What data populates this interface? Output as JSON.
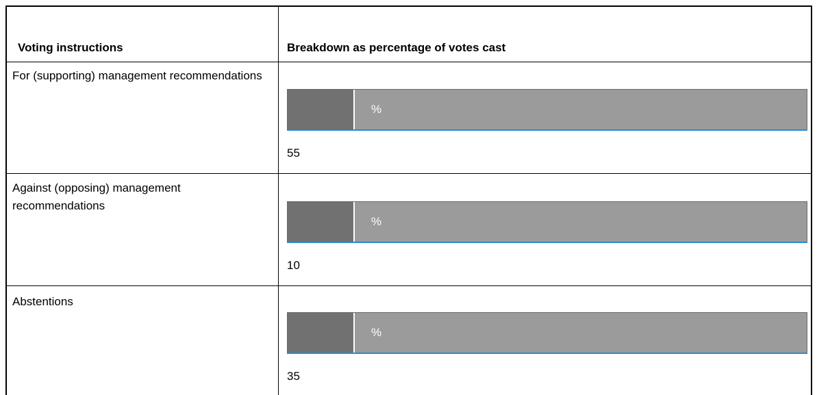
{
  "table": {
    "headers": {
      "col1": "Voting instructions",
      "col2": "Breakdown as percentage of votes cast"
    },
    "rows": [
      {
        "label": "For (supporting) management recommendations",
        "unit": "%",
        "value": "55"
      },
      {
        "label": "Against (opposing) management recommendations",
        "unit": "%",
        "value": "10"
      },
      {
        "label": "Abstentions",
        "unit": "%",
        "value": "35"
      }
    ]
  },
  "colors": {
    "input_bg": "#9b9b9b",
    "input_prefix": "#717171",
    "focus_line": "#2a8bd0"
  }
}
